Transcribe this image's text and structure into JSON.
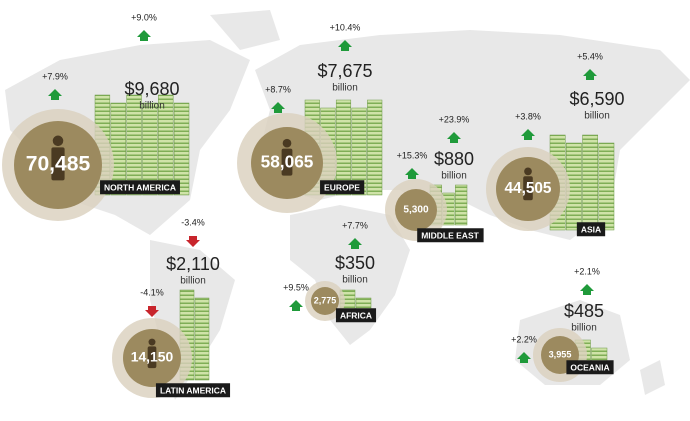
{
  "regions": [
    {
      "name": "NORTH AMERICA",
      "wealth": "$9,680",
      "unit": "billion",
      "wealth_change": "+9.0%",
      "population": "70,485",
      "population_change": "+7.9%"
    },
    {
      "name": "EUROPE",
      "wealth": "$7,675",
      "unit": "billion",
      "wealth_change": "+10.4%",
      "population": "58,065",
      "population_change": "+8.7%"
    },
    {
      "name": "MIDDLE EAST",
      "wealth": "$880",
      "unit": "billion",
      "wealth_change": "+23.9%",
      "population": "5,300",
      "population_change": "+15.3%"
    },
    {
      "name": "ASIA",
      "wealth": "$6,590",
      "unit": "billion",
      "wealth_change": "+5.4%",
      "population": "44,505",
      "population_change": "+3.8%"
    },
    {
      "name": "LATIN AMERICA",
      "wealth": "$2,110",
      "unit": "billion",
      "wealth_change": "-3.4%",
      "population": "14,150",
      "population_change": "-4.1%"
    },
    {
      "name": "AFRICA",
      "wealth": "$350",
      "unit": "billion",
      "wealth_change": "+7.7%",
      "population": "2,775",
      "population_change": "+9.5%"
    },
    {
      "name": "OCEANIA",
      "wealth": "$485",
      "unit": "billion",
      "wealth_change": "+2.1%",
      "population": "3,955",
      "population_change": "+2.2%"
    }
  ]
}
